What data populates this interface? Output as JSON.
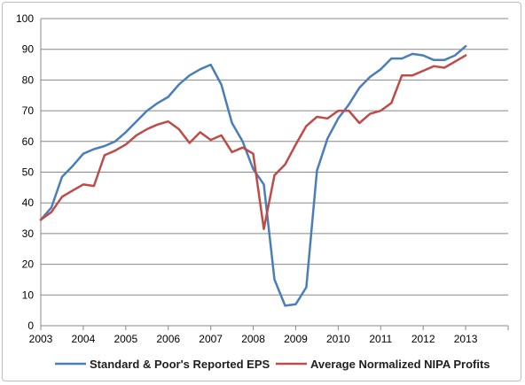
{
  "chart_data": {
    "type": "line",
    "title": "",
    "xlabel": "",
    "ylabel": "",
    "xlim": [
      2003,
      2014
    ],
    "ylim": [
      0,
      100
    ],
    "x_ticks": [
      "2003",
      "2004",
      "2005",
      "2006",
      "2007",
      "2008",
      "2009",
      "2010",
      "2011",
      "2012",
      "2013"
    ],
    "y_ticks": [
      "0",
      "10",
      "20",
      "30",
      "40",
      "50",
      "60",
      "70",
      "80",
      "90",
      "100"
    ],
    "grid": true,
    "legend_position": "bottom",
    "series": [
      {
        "name": "Standard & Poor's Reported EPS",
        "color": "#4a7ebb",
        "x": [
          2003.0,
          2003.25,
          2003.5,
          2003.75,
          2004.0,
          2004.25,
          2004.5,
          2004.75,
          2005.0,
          2005.25,
          2005.5,
          2005.75,
          2006.0,
          2006.25,
          2006.5,
          2006.75,
          2007.0,
          2007.25,
          2007.5,
          2007.75,
          2008.0,
          2008.25,
          2008.5,
          2008.75,
          2009.0,
          2009.25,
          2009.5,
          2009.75,
          2010.0,
          2010.25,
          2010.5,
          2010.75,
          2011.0,
          2011.25,
          2011.5,
          2011.75,
          2012.0,
          2012.25,
          2012.5,
          2012.75,
          2013.0
        ],
        "values": [
          34.5,
          38.5,
          48.5,
          52.0,
          56.0,
          57.5,
          58.5,
          60.0,
          63.0,
          66.5,
          70.0,
          72.5,
          74.5,
          78.5,
          81.5,
          83.5,
          85.0,
          78.5,
          66.0,
          60.0,
          51.0,
          46.0,
          15.0,
          6.5,
          7.0,
          12.5,
          50.5,
          61.0,
          67.5,
          72.0,
          77.5,
          81.0,
          83.5,
          87.0,
          87.0,
          88.5,
          88.0,
          86.5,
          86.5,
          88.0,
          91.0
        ]
      },
      {
        "name": "Average Normalized NIPA Profits",
        "color": "#be4b48",
        "x": [
          2003.0,
          2003.25,
          2003.5,
          2003.75,
          2004.0,
          2004.25,
          2004.5,
          2004.75,
          2005.0,
          2005.25,
          2005.5,
          2005.75,
          2006.0,
          2006.25,
          2006.5,
          2006.75,
          2007.0,
          2007.25,
          2007.5,
          2007.75,
          2008.0,
          2008.25,
          2008.5,
          2008.75,
          2009.0,
          2009.25,
          2009.5,
          2009.75,
          2010.0,
          2010.25,
          2010.5,
          2010.75,
          2011.0,
          2011.25,
          2011.5,
          2011.75,
          2012.0,
          2012.25,
          2012.5,
          2012.75,
          2013.0
        ],
        "values": [
          34.5,
          37.0,
          42.0,
          44.0,
          46.0,
          45.5,
          55.5,
          57.0,
          59.0,
          62.0,
          64.0,
          65.5,
          66.5,
          64.0,
          59.5,
          63.0,
          60.5,
          62.0,
          56.5,
          58.0,
          56.0,
          31.5,
          49.0,
          52.5,
          59.0,
          65.0,
          68.0,
          67.5,
          70.0,
          70.0,
          66.0,
          69.0,
          70.0,
          72.5,
          81.5,
          81.5,
          83.0,
          84.5,
          84.0,
          86.0,
          88.0
        ]
      }
    ]
  }
}
